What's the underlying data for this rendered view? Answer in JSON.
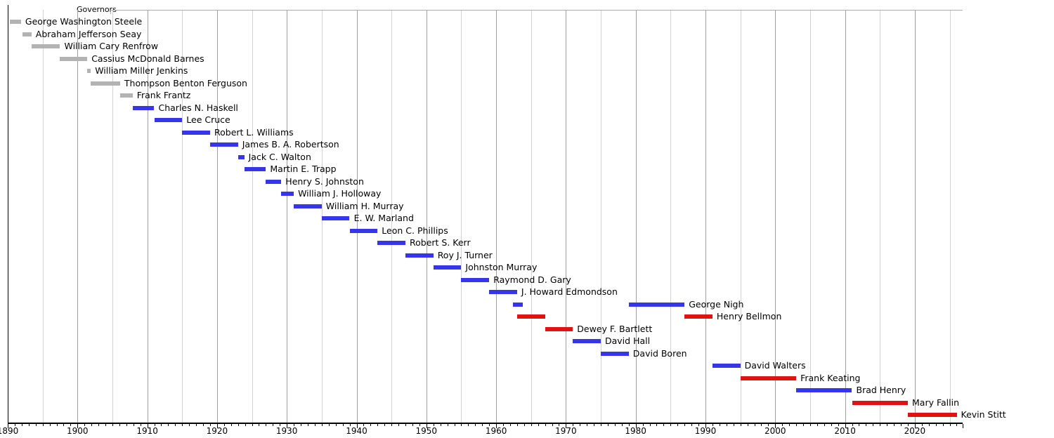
{
  "chart_data": {
    "type": "gantt",
    "title": "Governors",
    "x_axis": {
      "min": 1890,
      "max": 2026.9,
      "labeled_ticks": [
        1890,
        1900,
        1910,
        1920,
        1930,
        1940,
        1950,
        1960,
        1970,
        1980,
        1990,
        2000,
        2010,
        2020
      ],
      "minor_tick_step": 1,
      "grid_step": 5,
      "grid_on": true
    },
    "colors": {
      "gray": "#b3b3b3",
      "blue": "#3535ec",
      "red": "#e11212",
      "grid_major": "#a0a0a0",
      "grid_minor": "#d2d2d2",
      "frame": "#ababab",
      "axis": "#000000",
      "text": "#000000"
    },
    "governors": [
      {
        "name": "George Washington Steele",
        "color": "gray",
        "terms": [
          {
            "start": 1890.3,
            "end": 1891.9
          }
        ]
      },
      {
        "name": "Abraham Jefferson Seay",
        "color": "gray",
        "terms": [
          {
            "start": 1892.1,
            "end": 1893.4
          }
        ]
      },
      {
        "name": "William Cary Renfrow",
        "color": "gray",
        "terms": [
          {
            "start": 1893.4,
            "end": 1897.5
          }
        ]
      },
      {
        "name": "Cassius McDonald Barnes",
        "color": "gray",
        "terms": [
          {
            "start": 1897.4,
            "end": 1901.4
          }
        ]
      },
      {
        "name": "William Miller Jenkins",
        "color": "gray",
        "terms": [
          {
            "start": 1901.4,
            "end": 1901.9
          }
        ]
      },
      {
        "name": "Thompson Benton Ferguson",
        "color": "gray",
        "terms": [
          {
            "start": 1901.9,
            "end": 1906.1
          }
        ]
      },
      {
        "name": "Frank Frantz",
        "color": "gray",
        "terms": [
          {
            "start": 1906.1,
            "end": 1907.9
          }
        ]
      },
      {
        "name": "Charles N. Haskell",
        "color": "blue",
        "terms": [
          {
            "start": 1907.9,
            "end": 1911.0
          }
        ]
      },
      {
        "name": "Lee Cruce",
        "color": "blue",
        "terms": [
          {
            "start": 1911.0,
            "end": 1915.0
          }
        ]
      },
      {
        "name": "Robert L. Williams",
        "color": "blue",
        "terms": [
          {
            "start": 1915.0,
            "end": 1919.0
          }
        ]
      },
      {
        "name": "James B. A. Robertson",
        "color": "blue",
        "terms": [
          {
            "start": 1919.0,
            "end": 1923.0
          }
        ]
      },
      {
        "name": "Jack C. Walton",
        "color": "blue",
        "terms": [
          {
            "start": 1923.0,
            "end": 1923.9
          }
        ]
      },
      {
        "name": "Martin E. Trapp",
        "color": "blue",
        "terms": [
          {
            "start": 1923.9,
            "end": 1927.0
          }
        ]
      },
      {
        "name": "Henry S. Johnston",
        "color": "blue",
        "terms": [
          {
            "start": 1927.0,
            "end": 1929.2
          }
        ]
      },
      {
        "name": "William J. Holloway",
        "color": "blue",
        "terms": [
          {
            "start": 1929.2,
            "end": 1931.0
          }
        ]
      },
      {
        "name": "William H. Murray",
        "color": "blue",
        "terms": [
          {
            "start": 1931.0,
            "end": 1935.0
          }
        ]
      },
      {
        "name": "E. W. Marland",
        "color": "blue",
        "terms": [
          {
            "start": 1935.0,
            "end": 1939.0
          }
        ]
      },
      {
        "name": "Leon C. Phillips",
        "color": "blue",
        "terms": [
          {
            "start": 1939.0,
            "end": 1943.0
          }
        ]
      },
      {
        "name": "Robert S. Kerr",
        "color": "blue",
        "terms": [
          {
            "start": 1943.0,
            "end": 1947.0
          }
        ]
      },
      {
        "name": "Roy J. Turner",
        "color": "blue",
        "terms": [
          {
            "start": 1947.0,
            "end": 1951.0
          }
        ]
      },
      {
        "name": "Johnston Murray",
        "color": "blue",
        "terms": [
          {
            "start": 1951.0,
            "end": 1955.0
          }
        ]
      },
      {
        "name": "Raymond D. Gary",
        "color": "blue",
        "terms": [
          {
            "start": 1955.0,
            "end": 1959.0
          }
        ]
      },
      {
        "name": "J. Howard Edmondson",
        "color": "blue",
        "terms": [
          {
            "start": 1959.0,
            "end": 1963.0
          }
        ]
      },
      {
        "name": "George Nigh",
        "color": "blue",
        "terms": [
          {
            "start": 1962.4,
            "end": 1963.8
          },
          {
            "start": 1979.0,
            "end": 1987.0
          }
        ]
      },
      {
        "name": "Henry Bellmon",
        "color": "red",
        "terms": [
          {
            "start": 1963.0,
            "end": 1967.0
          },
          {
            "start": 1987.0,
            "end": 1991.0
          }
        ]
      },
      {
        "name": "Dewey F. Bartlett",
        "color": "red",
        "terms": [
          {
            "start": 1967.0,
            "end": 1971.0
          }
        ]
      },
      {
        "name": "David Hall",
        "color": "blue",
        "terms": [
          {
            "start": 1971.0,
            "end": 1975.0
          }
        ]
      },
      {
        "name": "David Boren",
        "color": "blue",
        "terms": [
          {
            "start": 1975.0,
            "end": 1979.0
          }
        ]
      },
      {
        "name": "David Walters",
        "color": "blue",
        "terms": [
          {
            "start": 1991.0,
            "end": 1995.0
          }
        ]
      },
      {
        "name": "Frank Keating",
        "color": "red",
        "terms": [
          {
            "start": 1995.0,
            "end": 2003.0
          }
        ]
      },
      {
        "name": "Brad Henry",
        "color": "blue",
        "terms": [
          {
            "start": 2003.0,
            "end": 2011.0
          }
        ]
      },
      {
        "name": "Mary Fallin",
        "color": "red",
        "terms": [
          {
            "start": 2011.0,
            "end": 2019.0
          }
        ]
      },
      {
        "name": "Kevin Stitt",
        "color": "red",
        "terms": [
          {
            "start": 2019.0,
            "end": 2026.0
          }
        ]
      }
    ]
  }
}
